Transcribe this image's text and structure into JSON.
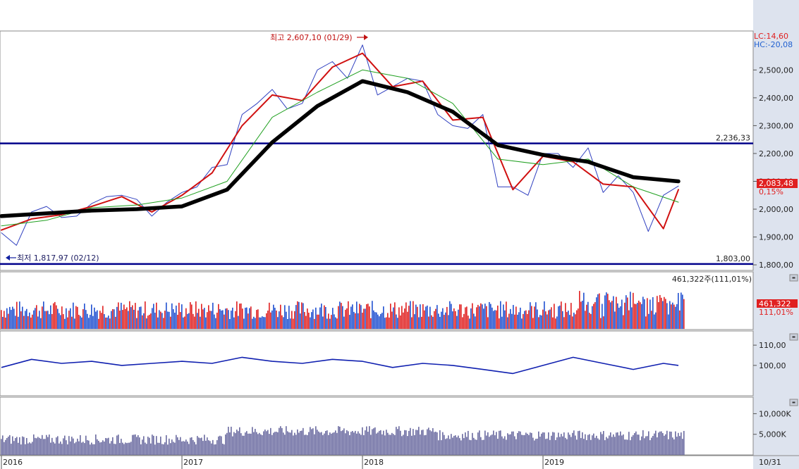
{
  "chart_data": [
    {
      "type": "line",
      "panel": "price",
      "title": "",
      "ylim": [
        1780,
        2640
      ],
      "y_ticks": [
        "2,500,00",
        "2,400,00",
        "2,300,00",
        "2,200,00",
        "2,100,00",
        "2,000,00",
        "1,900,00",
        "1,800,00"
      ],
      "y_tick_values": [
        2500,
        2400,
        2300,
        2200,
        2100,
        2000,
        1900,
        1800
      ],
      "header_labels": {
        "lc": "LC:14,60",
        "hc": "HC:-20,08"
      },
      "price_readout": {
        "value": "2,083,48",
        "change": "0,15%"
      },
      "annotations": {
        "high": "최고 2,607,10 (01/29)",
        "low": "최저 1,817,97 (02/12)"
      },
      "horizontal_lines": [
        {
          "value": 2236.33,
          "label": "2,236,33"
        },
        {
          "value": 1803.0,
          "label": "1,803,00"
        }
      ],
      "series": [
        {
          "name": "",
          "color": "#3040c0",
          "date": [
            "2016-01",
            "2016-02",
            "2016-03",
            "2016-04",
            "2016-05",
            "2016-06",
            "2016-07",
            "2016-08",
            "2016-09",
            "2016-10",
            "2016-11",
            "2016-12",
            "2017-01",
            "2017-02",
            "2017-03",
            "2017-04",
            "2017-05",
            "2017-06",
            "2017-07",
            "2017-08",
            "2017-09",
            "2017-10",
            "2017-11",
            "2017-12",
            "2018-01",
            "2018-02",
            "2018-03",
            "2018-04",
            "2018-05",
            "2018-06",
            "2018-07",
            "2018-08",
            "2018-09",
            "2018-10",
            "2018-11",
            "2018-12",
            "2019-01",
            "2019-02",
            "2019-03",
            "2019-04",
            "2019-05",
            "2019-06",
            "2019-07",
            "2019-08",
            "2019-09",
            "2019-10"
          ],
          "values": [
            1915,
            1870,
            1990,
            2010,
            1970,
            1975,
            2020,
            2045,
            2050,
            2035,
            1975,
            2025,
            2060,
            2080,
            2150,
            2160,
            2340,
            2380,
            2430,
            2360,
            2380,
            2500,
            2530,
            2470,
            2590,
            2410,
            2440,
            2470,
            2460,
            2340,
            2300,
            2290,
            2340,
            2080,
            2080,
            2050,
            2200,
            2200,
            2150,
            2220,
            2060,
            2120,
            2060,
            1920,
            2050,
            2083
          ]
        },
        {
          "name": "",
          "color": "#d01010",
          "date": [
            "2016-01",
            "2016-03",
            "2016-05",
            "2016-07",
            "2016-09",
            "2016-11",
            "2017-01",
            "2017-03",
            "2017-05",
            "2017-07",
            "2017-09",
            "2017-11",
            "2018-01",
            "2018-03",
            "2018-05",
            "2018-07",
            "2018-09",
            "2018-11",
            "2019-01",
            "2019-03",
            "2019-05",
            "2019-07",
            "2019-09",
            "2019-10"
          ],
          "values": [
            1925,
            1965,
            1980,
            2010,
            2045,
            1990,
            2050,
            2130,
            2300,
            2410,
            2390,
            2510,
            2560,
            2440,
            2460,
            2320,
            2330,
            2070,
            2190,
            2170,
            2090,
            2080,
            1930,
            2070
          ]
        },
        {
          "name": "",
          "color": "#20a020",
          "date": [
            "2016-01",
            "2016-04",
            "2016-07",
            "2016-10",
            "2017-01",
            "2017-04",
            "2017-07",
            "2017-10",
            "2018-01",
            "2018-04",
            "2018-07",
            "2018-10",
            "2019-01",
            "2019-04",
            "2019-07",
            "2019-10"
          ],
          "values": [
            1940,
            1960,
            2005,
            2015,
            2040,
            2100,
            2330,
            2420,
            2500,
            2470,
            2380,
            2180,
            2160,
            2180,
            2080,
            2025
          ]
        },
        {
          "name": "",
          "color": "#000000",
          "date": [
            "2016-01",
            "2016-04",
            "2016-07",
            "2016-10",
            "2017-01",
            "2017-04",
            "2017-07",
            "2017-10",
            "2018-01",
            "2018-04",
            "2018-07",
            "2018-10",
            "2019-01",
            "2019-04",
            "2019-07",
            "2019-10"
          ],
          "values": [
            1975,
            1985,
            1995,
            2000,
            2010,
            2070,
            2240,
            2370,
            2460,
            2420,
            2350,
            2230,
            2195,
            2170,
            2115,
            2100
          ]
        }
      ]
    },
    {
      "type": "bar",
      "panel": "volume",
      "legend": "461,322주(111,01%)",
      "readout": {
        "value": "461,322",
        "pct": "111,01%"
      }
    },
    {
      "type": "line",
      "panel": "oscillator",
      "ylim": [
        85,
        117
      ],
      "y_ticks": [
        "110,00",
        "100,00"
      ],
      "y_tick_values": [
        110,
        100
      ],
      "color": "#1020b0",
      "date": [
        "2016-01",
        "2016-03",
        "2016-05",
        "2016-07",
        "2016-09",
        "2016-11",
        "2017-01",
        "2017-03",
        "2017-05",
        "2017-07",
        "2017-09",
        "2017-11",
        "2018-01",
        "2018-03",
        "2018-05",
        "2018-07",
        "2018-09",
        "2018-11",
        "2019-01",
        "2019-03",
        "2019-05",
        "2019-07",
        "2019-09",
        "2019-10"
      ],
      "values": [
        99,
        103,
        101,
        102,
        100,
        101,
        102,
        101,
        104,
        102,
        101,
        103,
        102,
        99,
        101,
        100,
        98,
        96,
        100,
        104,
        101,
        98,
        101,
        100
      ]
    },
    {
      "type": "bar",
      "panel": "trade-value",
      "ylim": [
        0,
        14000
      ],
      "y_ticks": [
        "10,000K",
        "5,000K"
      ],
      "y_tick_values": [
        10000,
        5000
      ],
      "color": "#6a6aa0"
    }
  ],
  "x_axis": {
    "ticks": [
      "2016",
      "2017",
      "2018",
      "2019"
    ],
    "tick_dates": [
      "2016-01",
      "2017-01",
      "2018-01",
      "2019-01"
    ],
    "end_label": "10/31"
  },
  "colors": {
    "up": "#e02020",
    "down": "#2050d0",
    "hline": "#00008b",
    "axis_bg": "#dde3ee"
  },
  "icons": [
    "scroll-down-icon"
  ]
}
